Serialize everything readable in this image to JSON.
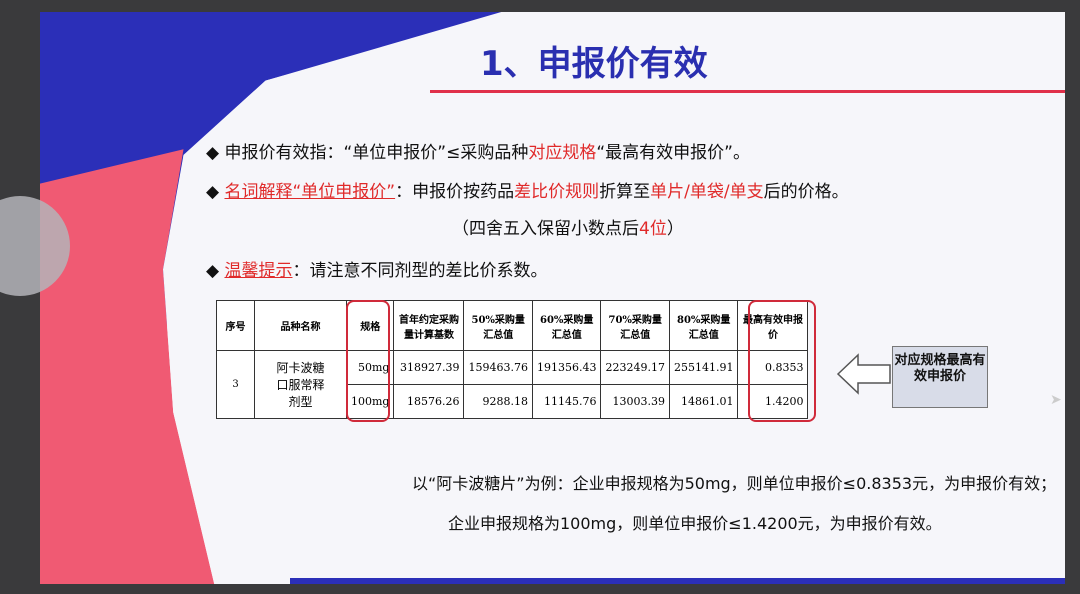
{
  "title": "1、申报价有效",
  "bullets": {
    "b1": {
      "a": "申报价有效指：“单位申报价”≤采购品种",
      "b": "对应规格",
      "c": "“最高有效申报价”。"
    },
    "b2": {
      "a": "名词解释“单位申报价”",
      "b": "：申报价按药品",
      "c": "差比价规则",
      "d": "折算至",
      "e": "单片/单袋/单支",
      "f": "后的价格。"
    },
    "b2note": {
      "a": "（四舍五入保留小数点后",
      "b": "4位",
      "c": "）"
    },
    "b3": {
      "a": "温馨提示",
      "b": "：请注意不同剂型的差比价系数。"
    }
  },
  "table": {
    "headers": [
      "序号",
      "品种名称",
      "规格",
      "首年约定采购量计算基数",
      "50%采购量汇总值",
      "60%采购量汇总值",
      "70%采购量汇总值",
      "80%采购量汇总值",
      "最高有效申报价"
    ],
    "seq": "3",
    "name": "阿卡波糖口服常释剂型",
    "rows": [
      [
        "50mg",
        "318927.39",
        "159463.76",
        "191356.43",
        "223249.17",
        "255141.91",
        "0.8353"
      ],
      [
        "100mg",
        "18576.26",
        "9288.18",
        "11145.76",
        "13003.39",
        "14861.01",
        "1.4200"
      ]
    ]
  },
  "callout": "对应规格最高有效申报价",
  "example": {
    "l1": "以“阿卡波糖片”为例：企业申报规格为50mg，则单位申报价≤0.8353元，为申报价有效；",
    "l2": "企业申报规格为100mg，则单位申报价≤1.4200元，为申报价有效。"
  },
  "colors": {
    "blue": "#2b2fb8",
    "red": "#e02a2a",
    "pink": "#f05a73"
  }
}
